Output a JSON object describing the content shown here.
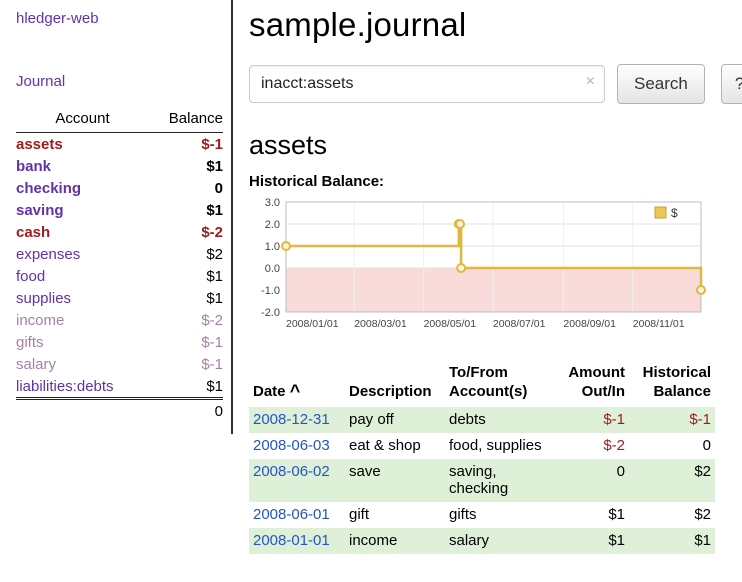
{
  "colors": {
    "link_purple": "#6232a8",
    "faded_mauve": "#aa7fa5",
    "negative_red": "#9e1b1e",
    "date_link_blue": "#2356c5",
    "row_stripe_green": "#dff0d8",
    "chart_line_gold": "#e0b83f",
    "chart_negative_area_pink": "#f9dcda"
  },
  "sidebar": {
    "app_title": "hledger-web",
    "journal_link": "Journal",
    "accounts": {
      "col_account": "Account",
      "col_balance": "Balance",
      "rows": [
        {
          "name": "assets",
          "balance": "$-1"
        },
        {
          "name": "bank",
          "balance": "$1"
        },
        {
          "name": "checking",
          "balance": "0"
        },
        {
          "name": "saving",
          "balance": "$1"
        },
        {
          "name": "cash",
          "balance": "$-2"
        },
        {
          "name": "expenses",
          "balance": "$2"
        },
        {
          "name": "food",
          "balance": "$1"
        },
        {
          "name": "supplies",
          "balance": "$1"
        },
        {
          "name": "income",
          "balance": "$-2"
        },
        {
          "name": "gifts",
          "balance": "$-1"
        },
        {
          "name": "salary",
          "balance": "$-1"
        },
        {
          "name": "liabilities:debts",
          "balance": "$1"
        }
      ],
      "total": "0"
    }
  },
  "main": {
    "title": "sample.journal",
    "search": {
      "value": "inacct:assets",
      "clear_icon": "×",
      "button": "Search",
      "help_button": "?"
    },
    "account_heading": "assets",
    "chart_title": "Historical Balance:"
  },
  "chart_data": {
    "type": "line",
    "title": "Historical Balance:",
    "legend": [
      "$"
    ],
    "legend_position": "top-right",
    "grid": true,
    "ylim": [
      -2,
      3
    ],
    "y_ticks": [
      "3.0",
      "2.0",
      "1.0",
      "0.0",
      "-1.0",
      "-2.0"
    ],
    "x_ticks": [
      "2008/01/01",
      "2008/03/01",
      "2008/05/01",
      "2008/07/01",
      "2008/09/01",
      "2008/11/01"
    ],
    "x_range": [
      "2008-01-01",
      "2008-12-31"
    ],
    "negative_region_shaded": true,
    "series": [
      {
        "name": "$",
        "style": "step-after",
        "points": [
          {
            "date": "2008-01-01",
            "value": 1
          },
          {
            "date": "2008-06-01",
            "value": 2
          },
          {
            "date": "2008-06-02",
            "value": 2
          },
          {
            "date": "2008-06-03",
            "value": 0
          },
          {
            "date": "2008-12-31",
            "value": -1
          }
        ]
      }
    ]
  },
  "register": {
    "headers": {
      "date": "Date",
      "sort_indicator": "^",
      "description": "Description",
      "accounts_line1": "To/From",
      "accounts_line2": "Account(s)",
      "amount_line1": "Amount",
      "amount_line2": "Out/In",
      "balance_line1": "Historical",
      "balance_line2": "Balance"
    },
    "rows": [
      {
        "date": "2008-12-31",
        "description": "pay off",
        "accounts": "debts",
        "amount": "$-1",
        "balance": "$-1"
      },
      {
        "date": "2008-06-03",
        "description": "eat & shop",
        "accounts": "food, supplies",
        "amount": "$-2",
        "balance": "0"
      },
      {
        "date": "2008-06-02",
        "description": "save",
        "accounts": "saving, checking",
        "amount": "0",
        "balance": "$2"
      },
      {
        "date": "2008-06-01",
        "description": "gift",
        "accounts": "gifts",
        "amount": "$1",
        "balance": "$2"
      },
      {
        "date": "2008-01-01",
        "description": "income",
        "accounts": "salary",
        "amount": "$1",
        "balance": "$1"
      }
    ]
  }
}
